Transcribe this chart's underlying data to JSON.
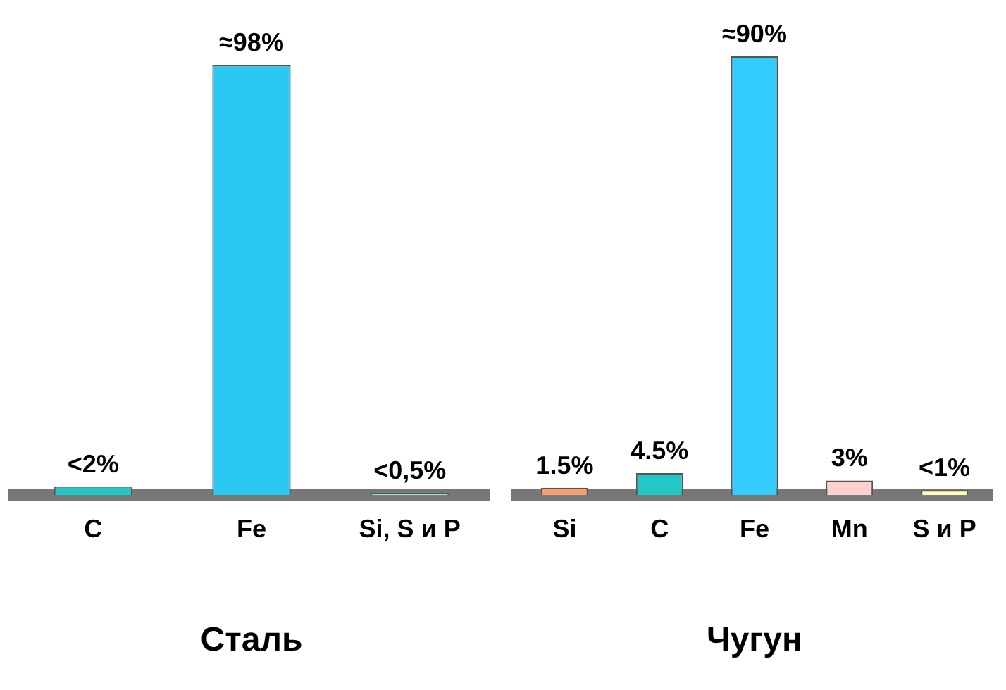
{
  "chart_data": [
    {
      "type": "bar",
      "title": "Сталь",
      "categories": [
        "C",
        "Fe",
        "Si, S и P"
      ],
      "values": [
        2,
        98,
        0.5
      ],
      "value_labels": [
        "<2%",
        "≈98%",
        "<0,5%"
      ],
      "colors": [
        "#22c8c8",
        "#2cc8f4",
        "#88ecc8"
      ],
      "tick_labels": "x",
      "grid": false,
      "legend": false
    },
    {
      "type": "bar",
      "title": "Чугун",
      "categories": [
        "Si",
        "C",
        "Fe",
        "Mn",
        "S и P"
      ],
      "values": [
        1.5,
        4.5,
        90,
        3,
        1
      ],
      "value_labels": [
        "1.5%",
        "4.5%",
        "≈90%",
        "3%",
        "<1%"
      ],
      "colors": [
        "#f4a070",
        "#22c8c8",
        "#33ccff",
        "#ffd0d0",
        "#ffffb8"
      ],
      "tick_labels": "x",
      "grid": false,
      "legend": false
    }
  ]
}
